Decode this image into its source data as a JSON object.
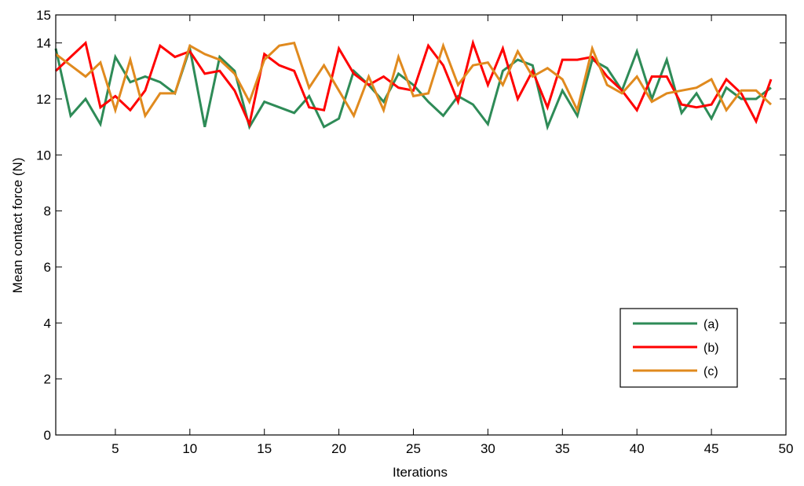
{
  "chart_data": {
    "type": "line",
    "title": "",
    "xlabel": "Iterations",
    "ylabel": "Mean contact force (N)",
    "xlim": [
      1,
      50
    ],
    "ylim": [
      0,
      15
    ],
    "x_ticks": [
      5,
      10,
      15,
      20,
      25,
      30,
      35,
      40,
      45,
      50
    ],
    "y_ticks": [
      0,
      2,
      4,
      6,
      8,
      10,
      12,
      14,
      15
    ],
    "grid": false,
    "legend_position": "lower-right",
    "x": [
      1,
      2,
      3,
      4,
      5,
      6,
      7,
      8,
      9,
      10,
      11,
      12,
      13,
      14,
      15,
      16,
      17,
      18,
      19,
      20,
      21,
      22,
      23,
      24,
      25,
      26,
      27,
      28,
      29,
      30,
      31,
      32,
      33,
      34,
      35,
      36,
      37,
      38,
      39,
      40,
      41,
      42,
      43,
      44,
      45,
      46,
      47,
      48,
      49
    ],
    "series": [
      {
        "name": "(a)",
        "color": "#2E8B57",
        "values": [
          13.8,
          11.4,
          12.0,
          11.1,
          13.5,
          12.6,
          12.8,
          12.6,
          12.2,
          13.8,
          11.0,
          13.5,
          13.0,
          11.0,
          11.9,
          11.7,
          11.5,
          12.1,
          11.0,
          11.3,
          13.0,
          12.5,
          11.9,
          12.9,
          12.5,
          11.9,
          11.4,
          12.1,
          11.8,
          11.1,
          13.0,
          13.4,
          13.2,
          11.0,
          12.3,
          11.4,
          13.4,
          13.1,
          12.3,
          13.7,
          12.0,
          13.4,
          11.5,
          12.2,
          11.3,
          12.4,
          12.0,
          12.0,
          12.4
        ]
      },
      {
        "name": "(b)",
        "color": "#FF0000",
        "values": [
          13.0,
          13.5,
          14.0,
          11.7,
          12.1,
          11.6,
          12.3,
          13.9,
          13.5,
          13.7,
          12.9,
          13.0,
          12.3,
          11.1,
          13.6,
          13.2,
          13.0,
          11.7,
          11.6,
          13.8,
          12.9,
          12.5,
          12.8,
          12.4,
          12.3,
          13.9,
          13.2,
          11.9,
          14.0,
          12.5,
          13.8,
          12.0,
          13.0,
          11.7,
          13.4,
          13.4,
          13.5,
          12.8,
          12.3,
          11.6,
          12.8,
          12.8,
          11.8,
          11.7,
          11.8,
          12.7,
          12.2,
          11.2,
          12.7
        ]
      },
      {
        "name": "(c)",
        "color": "#E08A1E",
        "values": [
          13.6,
          13.2,
          12.8,
          13.3,
          11.6,
          13.4,
          11.4,
          12.2,
          12.2,
          13.9,
          13.6,
          13.4,
          12.9,
          11.9,
          13.4,
          13.9,
          14.0,
          12.4,
          13.2,
          12.3,
          11.4,
          12.8,
          11.6,
          13.5,
          12.1,
          12.2,
          13.9,
          12.5,
          13.2,
          13.3,
          12.5,
          13.7,
          12.8,
          13.1,
          12.7,
          11.6,
          13.8,
          12.5,
          12.2,
          12.8,
          11.9,
          12.2,
          12.3,
          12.4,
          12.7,
          11.6,
          12.3,
          12.3,
          11.8
        ]
      }
    ]
  }
}
